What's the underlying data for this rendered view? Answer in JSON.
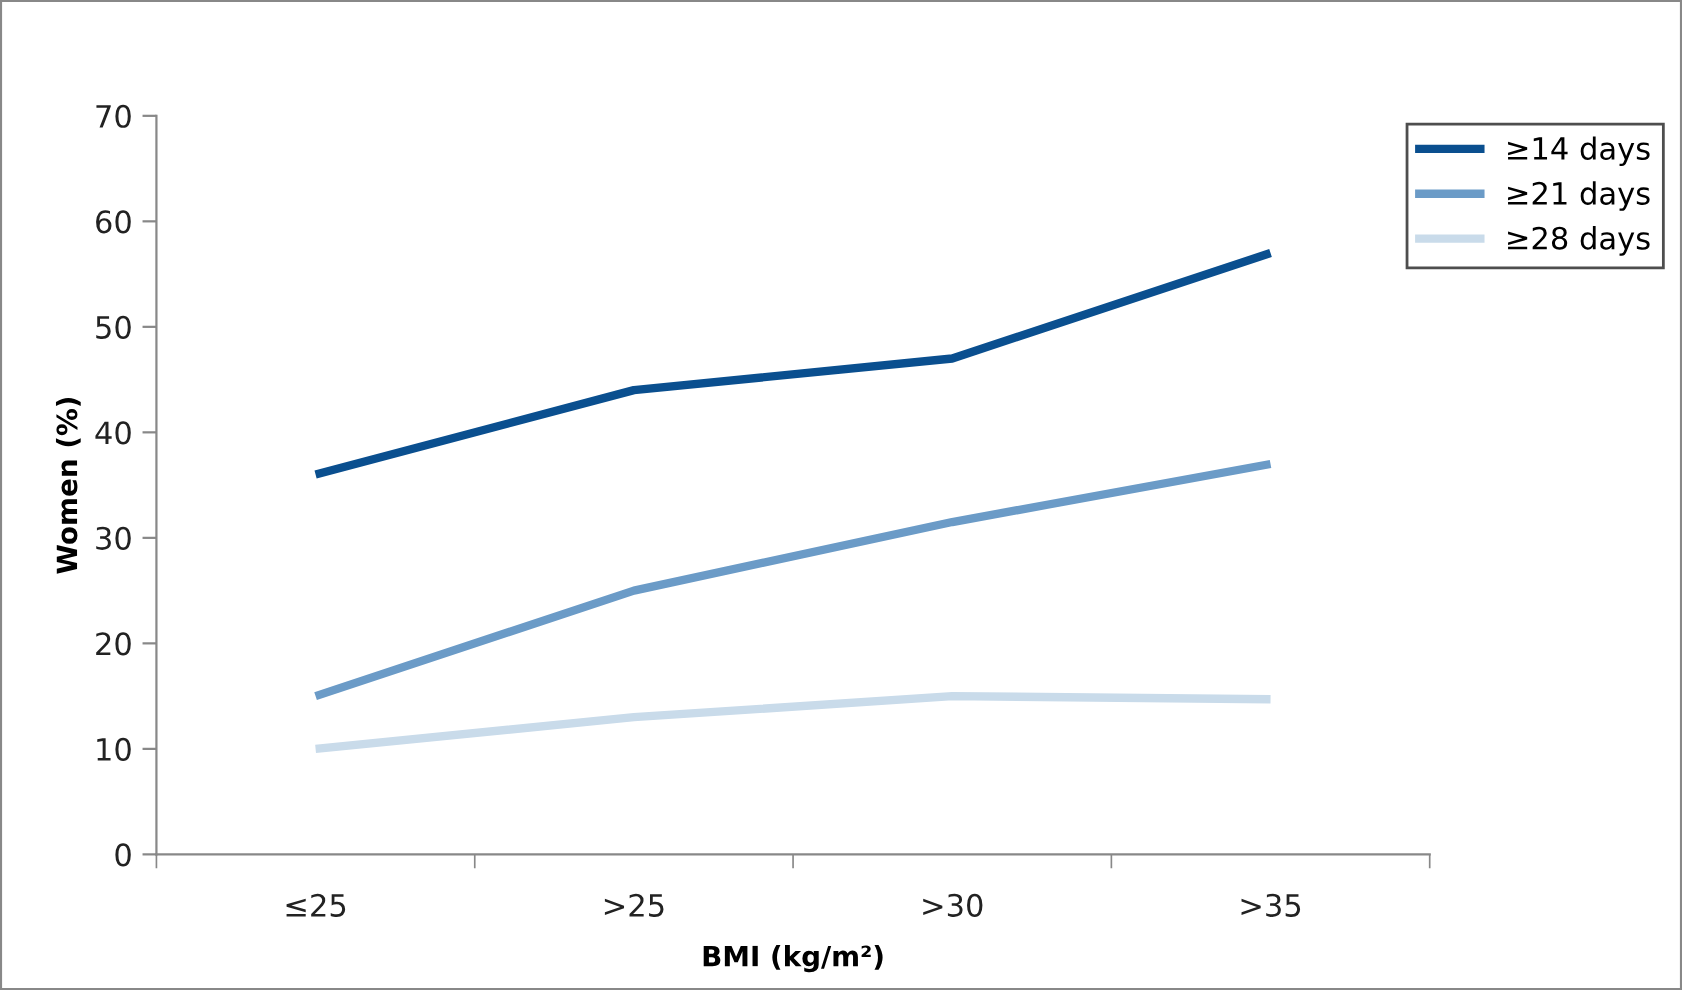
{
  "chart_data": {
    "type": "line",
    "xlabel": "BMI (kg/m²)",
    "ylabel": "Women (%)",
    "categories": [
      "≤25",
      ">25",
      ">30",
      ">35"
    ],
    "series": [
      {
        "name": "≥14 days",
        "color": "#0a4f8f",
        "values": [
          36,
          44,
          47,
          57
        ]
      },
      {
        "name": "≥21 days",
        "color": "#6b9bc7",
        "values": [
          15,
          25,
          31.5,
          37
        ]
      },
      {
        "name": "≥28 days",
        "color": "#c9dbea",
        "values": [
          10,
          13,
          15,
          14.7
        ]
      }
    ],
    "ylim": [
      0,
      70
    ],
    "yticks": [
      0,
      10,
      20,
      30,
      40,
      50,
      60,
      70
    ],
    "grid": false,
    "legend": "top right",
    "marker": "none",
    "line_style": "solid"
  }
}
